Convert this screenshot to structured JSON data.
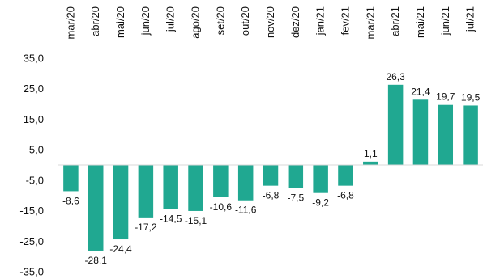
{
  "chart_data": {
    "type": "bar",
    "title": "",
    "xlabel": "",
    "ylabel": "",
    "categories": [
      "mar/20",
      "abr/20",
      "mai/20",
      "jun/20",
      "jul/20",
      "ago/20",
      "set/20",
      "out/20",
      "nov/20",
      "dez/20",
      "jan/21",
      "fev/21",
      "mar/21",
      "abr/21",
      "mai/21",
      "jun/21",
      "jul/21"
    ],
    "values": [
      -8.6,
      -28.1,
      -24.4,
      -17.2,
      -14.5,
      -15.1,
      -10.6,
      -11.6,
      -6.8,
      -7.5,
      -9.2,
      -6.8,
      1.1,
      26.3,
      21.4,
      19.7,
      19.5
    ],
    "value_labels": [
      "-8,6",
      "-28,1",
      "-24,4",
      "-17,2",
      "-14,5",
      "-15,1",
      "-10,6",
      "-11,6",
      "-6,8",
      "-7,5",
      "-9,2",
      "-6,8",
      "1,1",
      "26,3",
      "21,4",
      "19,7",
      "19,5"
    ],
    "yticks": [
      35,
      25,
      15,
      5,
      -5,
      -15,
      -25,
      -35
    ],
    "ytick_labels": [
      "35,0",
      "25,0",
      "15,0",
      "5,0",
      "-5,0",
      "-15,0",
      "-25,0",
      "-35,0"
    ],
    "ylim": [
      -35,
      35
    ],
    "grid": false,
    "category_label_position": "top",
    "bar_color": "#20a891"
  }
}
